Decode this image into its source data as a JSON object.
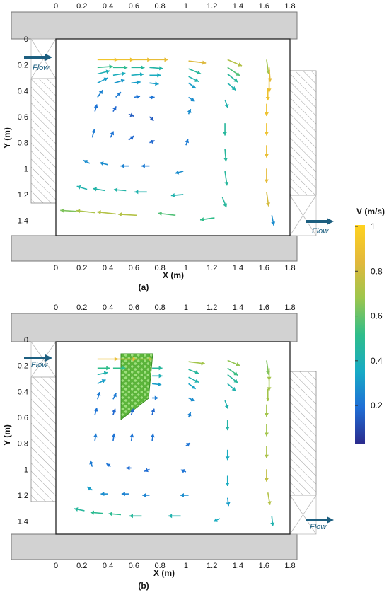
{
  "xticks": [
    "0",
    "0.2",
    "0.4",
    "0.6",
    "0.8",
    "1",
    "1.2",
    "1.4",
    "1.6",
    "1.8"
  ],
  "yticks": [
    "0",
    "0.2",
    "0.4",
    "0.6",
    "0.8",
    "1",
    "1.2",
    "1.4"
  ],
  "xlabel": "X (m)",
  "ylabel": "Y (m)",
  "flow_label": "Flow",
  "panels": [
    {
      "label": "(a)",
      "has_block": false
    },
    {
      "label": "(b)",
      "has_block": true
    }
  ],
  "colorbar": {
    "title": "V (m/s)",
    "ticks": [
      "1",
      "0.8",
      "0.6",
      "0.4",
      "0.2"
    ],
    "colors": [
      "#ffd21e",
      "#e2b83c",
      "#9ec64c",
      "#2fbd8a",
      "#17aac6",
      "#1f6fd6",
      "#2b2a8c"
    ]
  },
  "colors": {
    "wall": "#d2d2d2",
    "flow_arrow": "#1d5f80"
  },
  "chart_data": [
    {
      "type": "quiver",
      "x_range": [
        0,
        1.8
      ],
      "y_range": [
        0,
        1.5
      ],
      "vectors": [
        {
          "x": 0.32,
          "y": 0.16,
          "u": 0.2,
          "v": 0,
          "s": 0.92
        },
        {
          "x": 0.44,
          "y": 0.16,
          "u": 0.2,
          "v": 0,
          "s": 0.9
        },
        {
          "x": 0.58,
          "y": 0.16,
          "u": 0.19,
          "v": 0,
          "s": 0.88
        },
        {
          "x": 0.72,
          "y": 0.16,
          "u": 0.18,
          "v": 0,
          "s": 0.86
        },
        {
          "x": 1.02,
          "y": 0.17,
          "u": 0.17,
          "v": 0.02,
          "s": 0.82
        },
        {
          "x": 1.32,
          "y": 0.16,
          "u": 0.14,
          "v": 0.06,
          "s": 0.72
        },
        {
          "x": 1.62,
          "y": 0.16,
          "u": 0.02,
          "v": 0.14,
          "s": 0.68
        },
        {
          "x": 0.32,
          "y": 0.22,
          "u": 0.15,
          "v": -0.01,
          "s": 0.5
        },
        {
          "x": 0.44,
          "y": 0.22,
          "u": 0.14,
          "v": 0,
          "s": 0.48
        },
        {
          "x": 0.58,
          "y": 0.22,
          "u": 0.13,
          "v": 0,
          "s": 0.45
        },
        {
          "x": 0.72,
          "y": 0.22,
          "u": 0.13,
          "v": 0.01,
          "s": 0.42
        },
        {
          "x": 1.02,
          "y": 0.23,
          "u": 0.12,
          "v": 0.05,
          "s": 0.45
        },
        {
          "x": 1.32,
          "y": 0.22,
          "u": 0.12,
          "v": 0.08,
          "s": 0.55
        },
        {
          "x": 1.64,
          "y": 0.22,
          "u": 0.01,
          "v": 0.14,
          "s": 0.85
        },
        {
          "x": 0.32,
          "y": 0.27,
          "u": 0.12,
          "v": -0.03,
          "s": 0.38
        },
        {
          "x": 0.44,
          "y": 0.28,
          "u": 0.12,
          "v": -0.02,
          "s": 0.36
        },
        {
          "x": 0.58,
          "y": 0.28,
          "u": 0.12,
          "v": -0.01,
          "s": 0.36
        },
        {
          "x": 0.72,
          "y": 0.28,
          "u": 0.11,
          "v": 0,
          "s": 0.35
        },
        {
          "x": 1.02,
          "y": 0.29,
          "u": 0.1,
          "v": 0.05,
          "s": 0.4
        },
        {
          "x": 1.32,
          "y": 0.27,
          "u": 0.1,
          "v": 0.08,
          "s": 0.45
        },
        {
          "x": 1.64,
          "y": 0.3,
          "u": 0,
          "v": 0.14,
          "s": 0.88
        },
        {
          "x": 0.32,
          "y": 0.34,
          "u": 0.1,
          "v": -0.05,
          "s": 0.3
        },
        {
          "x": 0.45,
          "y": 0.34,
          "u": 0.1,
          "v": -0.03,
          "s": 0.28
        },
        {
          "x": 0.58,
          "y": 0.34,
          "u": 0.09,
          "v": -0.01,
          "s": 0.3
        },
        {
          "x": 0.72,
          "y": 0.34,
          "u": 0.09,
          "v": 0.01,
          "s": 0.3
        },
        {
          "x": 1.02,
          "y": 0.34,
          "u": 0.07,
          "v": 0.05,
          "s": 0.3
        },
        {
          "x": 1.32,
          "y": 0.34,
          "u": 0.08,
          "v": 0.07,
          "s": 0.4
        },
        {
          "x": 1.63,
          "y": 0.38,
          "u": 0,
          "v": 0.12,
          "s": 0.9
        },
        {
          "x": 0.32,
          "y": 0.45,
          "u": 0.05,
          "v": -0.07,
          "s": 0.22
        },
        {
          "x": 0.46,
          "y": 0.45,
          "u": 0.05,
          "v": -0.05,
          "s": 0.2
        },
        {
          "x": 0.6,
          "y": 0.45,
          "u": 0.06,
          "v": -0.01,
          "s": 0.18
        },
        {
          "x": 0.72,
          "y": 0.45,
          "u": 0.05,
          "v": 0,
          "s": 0.18
        },
        {
          "x": 1.02,
          "y": 0.45,
          "u": 0.06,
          "v": 0.04,
          "s": 0.25
        },
        {
          "x": 1.3,
          "y": 0.47,
          "u": 0.03,
          "v": 0.08,
          "s": 0.4
        },
        {
          "x": 1.62,
          "y": 0.5,
          "u": 0,
          "v": 0.12,
          "s": 0.9
        },
        {
          "x": 0.3,
          "y": 0.56,
          "u": 0.02,
          "v": -0.07,
          "s": 0.18
        },
        {
          "x": 0.44,
          "y": 0.56,
          "u": 0.03,
          "v": -0.05,
          "s": 0.15
        },
        {
          "x": 0.56,
          "y": 0.58,
          "u": 0.05,
          "v": 0.02,
          "s": 0.12
        },
        {
          "x": 0.72,
          "y": 0.6,
          "u": 0.04,
          "v": 0.04,
          "s": 0.12
        },
        {
          "x": 1.02,
          "y": 0.58,
          "u": 0.02,
          "v": -0.05,
          "s": 0.25
        },
        {
          "x": 1.3,
          "y": 0.65,
          "u": 0,
          "v": 0.12,
          "s": 0.45
        },
        {
          "x": 1.62,
          "y": 0.65,
          "u": 0,
          "v": 0.12,
          "s": 0.9
        },
        {
          "x": 0.28,
          "y": 0.76,
          "u": 0.02,
          "v": -0.08,
          "s": 0.2
        },
        {
          "x": 0.42,
          "y": 0.76,
          "u": 0.03,
          "v": -0.06,
          "s": 0.18
        },
        {
          "x": 0.56,
          "y": 0.78,
          "u": 0.05,
          "v": -0.04,
          "s": 0.15
        },
        {
          "x": 0.72,
          "y": 0.8,
          "u": 0.05,
          "v": -0.02,
          "s": 0.15
        },
        {
          "x": 1.0,
          "y": 0.82,
          "u": 0.02,
          "v": -0.06,
          "s": 0.2
        },
        {
          "x": 1.3,
          "y": 0.85,
          "u": 0.01,
          "v": 0.12,
          "s": 0.45
        },
        {
          "x": 1.62,
          "y": 0.82,
          "u": 0,
          "v": 0.12,
          "s": 0.88
        },
        {
          "x": 0.26,
          "y": 0.96,
          "u": 0.06,
          "v": -0.03,
          "s": 0.25
        },
        {
          "x": 0.4,
          "y": 0.97,
          "u": 0.08,
          "v": -0.02,
          "s": 0.25
        },
        {
          "x": 0.56,
          "y": 0.98,
          "u": 0.08,
          "v": 0,
          "s": 0.22
        },
        {
          "x": 0.72,
          "y": 0.98,
          "u": 0.08,
          "v": 0,
          "s": 0.2
        },
        {
          "x": 0.98,
          "y": 1.02,
          "u": 0.08,
          "v": 0.02,
          "s": 0.25
        },
        {
          "x": 1.3,
          "y": 1.02,
          "u": -0.02,
          "v": 0.14,
          "s": 0.45
        },
        {
          "x": 1.62,
          "y": 1.0,
          "u": 0,
          "v": 0.14,
          "s": 0.85
        },
        {
          "x": 0.24,
          "y": 1.16,
          "u": 0.1,
          "v": -0.03,
          "s": 0.4
        },
        {
          "x": 0.38,
          "y": 1.17,
          "u": 0.12,
          "v": -0.02,
          "s": 0.42
        },
        {
          "x": 0.54,
          "y": 1.17,
          "u": 0.12,
          "v": -0.01,
          "s": 0.42
        },
        {
          "x": 0.7,
          "y": 1.18,
          "u": 0.12,
          "v": 0,
          "s": 0.4
        },
        {
          "x": 0.98,
          "y": 1.2,
          "u": 0.12,
          "v": 0.01,
          "s": 0.4
        },
        {
          "x": 1.28,
          "y": 1.22,
          "u": -0.04,
          "v": 0.1,
          "s": 0.45
        },
        {
          "x": 1.62,
          "y": 1.18,
          "u": 0.02,
          "v": 0.14,
          "s": 0.8
        },
        {
          "x": 0.16,
          "y": 1.33,
          "u": 0.16,
          "v": -0.01,
          "s": 0.62
        },
        {
          "x": 0.3,
          "y": 1.34,
          "u": 0.18,
          "v": -0.02,
          "s": 0.7
        },
        {
          "x": 0.46,
          "y": 1.35,
          "u": 0.18,
          "v": -0.02,
          "s": 0.72
        },
        {
          "x": 0.62,
          "y": 1.36,
          "u": 0.18,
          "v": -0.01,
          "s": 0.72
        },
        {
          "x": 0.92,
          "y": 1.36,
          "u": 0.17,
          "v": -0.02,
          "s": 0.55
        },
        {
          "x": 1.22,
          "y": 1.38,
          "u": 0.14,
          "v": 0.02,
          "s": 0.5
        },
        {
          "x": 1.66,
          "y": 1.36,
          "u": 0.02,
          "v": 0.1,
          "s": 0.25
        }
      ]
    },
    {
      "type": "quiver",
      "x_range": [
        0,
        1.8
      ],
      "y_range": [
        0,
        1.5
      ],
      "vectors": [
        {
          "x": 0.32,
          "y": 0.15,
          "u": 0.2,
          "v": 0,
          "s": 0.88
        },
        {
          "x": 0.46,
          "y": 0.15,
          "u": 0.2,
          "v": 0,
          "s": 0.85
        },
        {
          "x": 0.6,
          "y": 0.15,
          "u": 0.18,
          "v": 0,
          "s": 0.72
        },
        {
          "x": 1.02,
          "y": 0.17,
          "u": 0.16,
          "v": 0.02,
          "s": 0.68
        },
        {
          "x": 1.32,
          "y": 0.16,
          "u": 0.12,
          "v": 0.05,
          "s": 0.65
        },
        {
          "x": 1.62,
          "y": 0.16,
          "u": 0.02,
          "v": 0.14,
          "s": 0.62
        },
        {
          "x": 0.32,
          "y": 0.22,
          "u": 0.12,
          "v": 0,
          "s": 0.5
        },
        {
          "x": 0.44,
          "y": 0.22,
          "u": 0.12,
          "v": 0,
          "s": 0.5
        },
        {
          "x": 0.74,
          "y": 0.22,
          "u": 0.1,
          "v": 0,
          "s": 0.45
        },
        {
          "x": 1.02,
          "y": 0.23,
          "u": 0.1,
          "v": 0.04,
          "s": 0.45
        },
        {
          "x": 1.32,
          "y": 0.22,
          "u": 0.1,
          "v": 0.07,
          "s": 0.52
        },
        {
          "x": 1.64,
          "y": 0.22,
          "u": 0,
          "v": 0.12,
          "s": 0.68
        },
        {
          "x": 0.32,
          "y": 0.27,
          "u": 0.1,
          "v": -0.02,
          "s": 0.4
        },
        {
          "x": 0.74,
          "y": 0.28,
          "u": 0.1,
          "v": 0,
          "s": 0.38
        },
        {
          "x": 1.02,
          "y": 0.29,
          "u": 0.1,
          "v": 0.05,
          "s": 0.4
        },
        {
          "x": 1.32,
          "y": 0.27,
          "u": 0.1,
          "v": 0.08,
          "s": 0.45
        },
        {
          "x": 1.64,
          "y": 0.3,
          "u": 0,
          "v": 0.12,
          "s": 0.68
        },
        {
          "x": 0.32,
          "y": 0.34,
          "u": 0.08,
          "v": -0.04,
          "s": 0.3
        },
        {
          "x": 0.74,
          "y": 0.34,
          "u": 0.09,
          "v": 0.01,
          "s": 0.3
        },
        {
          "x": 1.02,
          "y": 0.34,
          "u": 0.07,
          "v": 0.05,
          "s": 0.32
        },
        {
          "x": 1.32,
          "y": 0.34,
          "u": 0.08,
          "v": 0.07,
          "s": 0.4
        },
        {
          "x": 1.63,
          "y": 0.38,
          "u": 0,
          "v": 0.12,
          "s": 0.68
        },
        {
          "x": 0.32,
          "y": 0.46,
          "u": 0.02,
          "v": -0.07,
          "s": 0.2
        },
        {
          "x": 0.44,
          "y": 0.46,
          "u": 0.03,
          "v": -0.06,
          "s": 0.2
        },
        {
          "x": 0.74,
          "y": 0.45,
          "u": 0.06,
          "v": 0,
          "s": 0.2
        },
        {
          "x": 1.02,
          "y": 0.45,
          "u": 0.06,
          "v": 0.03,
          "s": 0.25
        },
        {
          "x": 1.3,
          "y": 0.47,
          "u": 0.03,
          "v": 0.08,
          "s": 0.4
        },
        {
          "x": 1.62,
          "y": 0.5,
          "u": 0,
          "v": 0.12,
          "s": 0.68
        },
        {
          "x": 0.3,
          "y": 0.58,
          "u": 0.02,
          "v": -0.07,
          "s": 0.18
        },
        {
          "x": 0.44,
          "y": 0.58,
          "u": 0.02,
          "v": -0.06,
          "s": 0.15
        },
        {
          "x": 0.58,
          "y": 0.58,
          "u": 0.02,
          "v": -0.06,
          "s": 0.15
        },
        {
          "x": 0.74,
          "y": 0.58,
          "u": 0.02,
          "v": -0.06,
          "s": 0.15
        },
        {
          "x": 1.02,
          "y": 0.6,
          "u": 0.02,
          "v": -0.05,
          "s": 0.22
        },
        {
          "x": 1.32,
          "y": 0.62,
          "u": 0,
          "v": 0.1,
          "s": 0.42
        },
        {
          "x": 1.62,
          "y": 0.65,
          "u": 0,
          "v": 0.12,
          "s": 0.68
        },
        {
          "x": 0.3,
          "y": 0.78,
          "u": 0.01,
          "v": -0.07,
          "s": 0.2
        },
        {
          "x": 0.44,
          "y": 0.78,
          "u": 0.01,
          "v": -0.07,
          "s": 0.18
        },
        {
          "x": 0.58,
          "y": 0.78,
          "u": 0.01,
          "v": -0.07,
          "s": 0.18
        },
        {
          "x": 0.74,
          "y": 0.78,
          "u": 0.01,
          "v": -0.07,
          "s": 0.18
        },
        {
          "x": 1.0,
          "y": 0.82,
          "u": 0.04,
          "v": -0.03,
          "s": 0.18
        },
        {
          "x": 1.32,
          "y": 0.85,
          "u": 0,
          "v": 0.1,
          "s": 0.35
        },
        {
          "x": 1.62,
          "y": 0.82,
          "u": 0,
          "v": 0.12,
          "s": 0.7
        },
        {
          "x": 0.28,
          "y": 0.98,
          "u": 0.02,
          "v": -0.06,
          "s": 0.2
        },
        {
          "x": 0.42,
          "y": 0.98,
          "u": 0.04,
          "v": -0.03,
          "s": 0.18
        },
        {
          "x": 0.58,
          "y": 0.99,
          "u": 0.05,
          "v": 0,
          "s": 0.16
        },
        {
          "x": 0.72,
          "y": 1.0,
          "u": 0.05,
          "v": 0.02,
          "s": 0.16
        },
        {
          "x": 1.0,
          "y": 1.02,
          "u": 0.05,
          "v": -0.02,
          "s": 0.18
        },
        {
          "x": 1.32,
          "y": 1.05,
          "u": 0,
          "v": 0.1,
          "s": 0.35
        },
        {
          "x": 1.62,
          "y": 1.0,
          "u": 0,
          "v": 0.12,
          "s": 0.75
        },
        {
          "x": 0.28,
          "y": 1.16,
          "u": 0.05,
          "v": -0.03,
          "s": 0.3
        },
        {
          "x": 0.4,
          "y": 1.19,
          "u": 0.07,
          "v": 0,
          "s": 0.25
        },
        {
          "x": 0.56,
          "y": 1.19,
          "u": 0.07,
          "v": 0,
          "s": 0.22
        },
        {
          "x": 0.72,
          "y": 1.2,
          "u": 0.07,
          "v": 0,
          "s": 0.22
        },
        {
          "x": 1.02,
          "y": 1.2,
          "u": 0.08,
          "v": 0,
          "s": 0.25
        },
        {
          "x": 1.32,
          "y": 1.22,
          "u": -0.01,
          "v": 0.08,
          "s": 0.3
        },
        {
          "x": 1.63,
          "y": 1.18,
          "u": 0.02,
          "v": 0.12,
          "s": 0.72
        },
        {
          "x": 0.22,
          "y": 1.32,
          "u": 0.1,
          "v": -0.02,
          "s": 0.45
        },
        {
          "x": 0.36,
          "y": 1.34,
          "u": 0.12,
          "v": -0.01,
          "s": 0.48
        },
        {
          "x": 0.5,
          "y": 1.35,
          "u": 0.12,
          "v": -0.01,
          "s": 0.48
        },
        {
          "x": 0.66,
          "y": 1.36,
          "u": 0.12,
          "v": 0,
          "s": 0.45
        },
        {
          "x": 0.96,
          "y": 1.36,
          "u": 0.12,
          "v": 0,
          "s": 0.4
        },
        {
          "x": 1.26,
          "y": 1.38,
          "u": 0.06,
          "v": 0.03,
          "s": 0.35
        },
        {
          "x": 1.66,
          "y": 1.36,
          "u": 0.01,
          "v": 0.1,
          "s": 0.4
        }
      ]
    }
  ]
}
